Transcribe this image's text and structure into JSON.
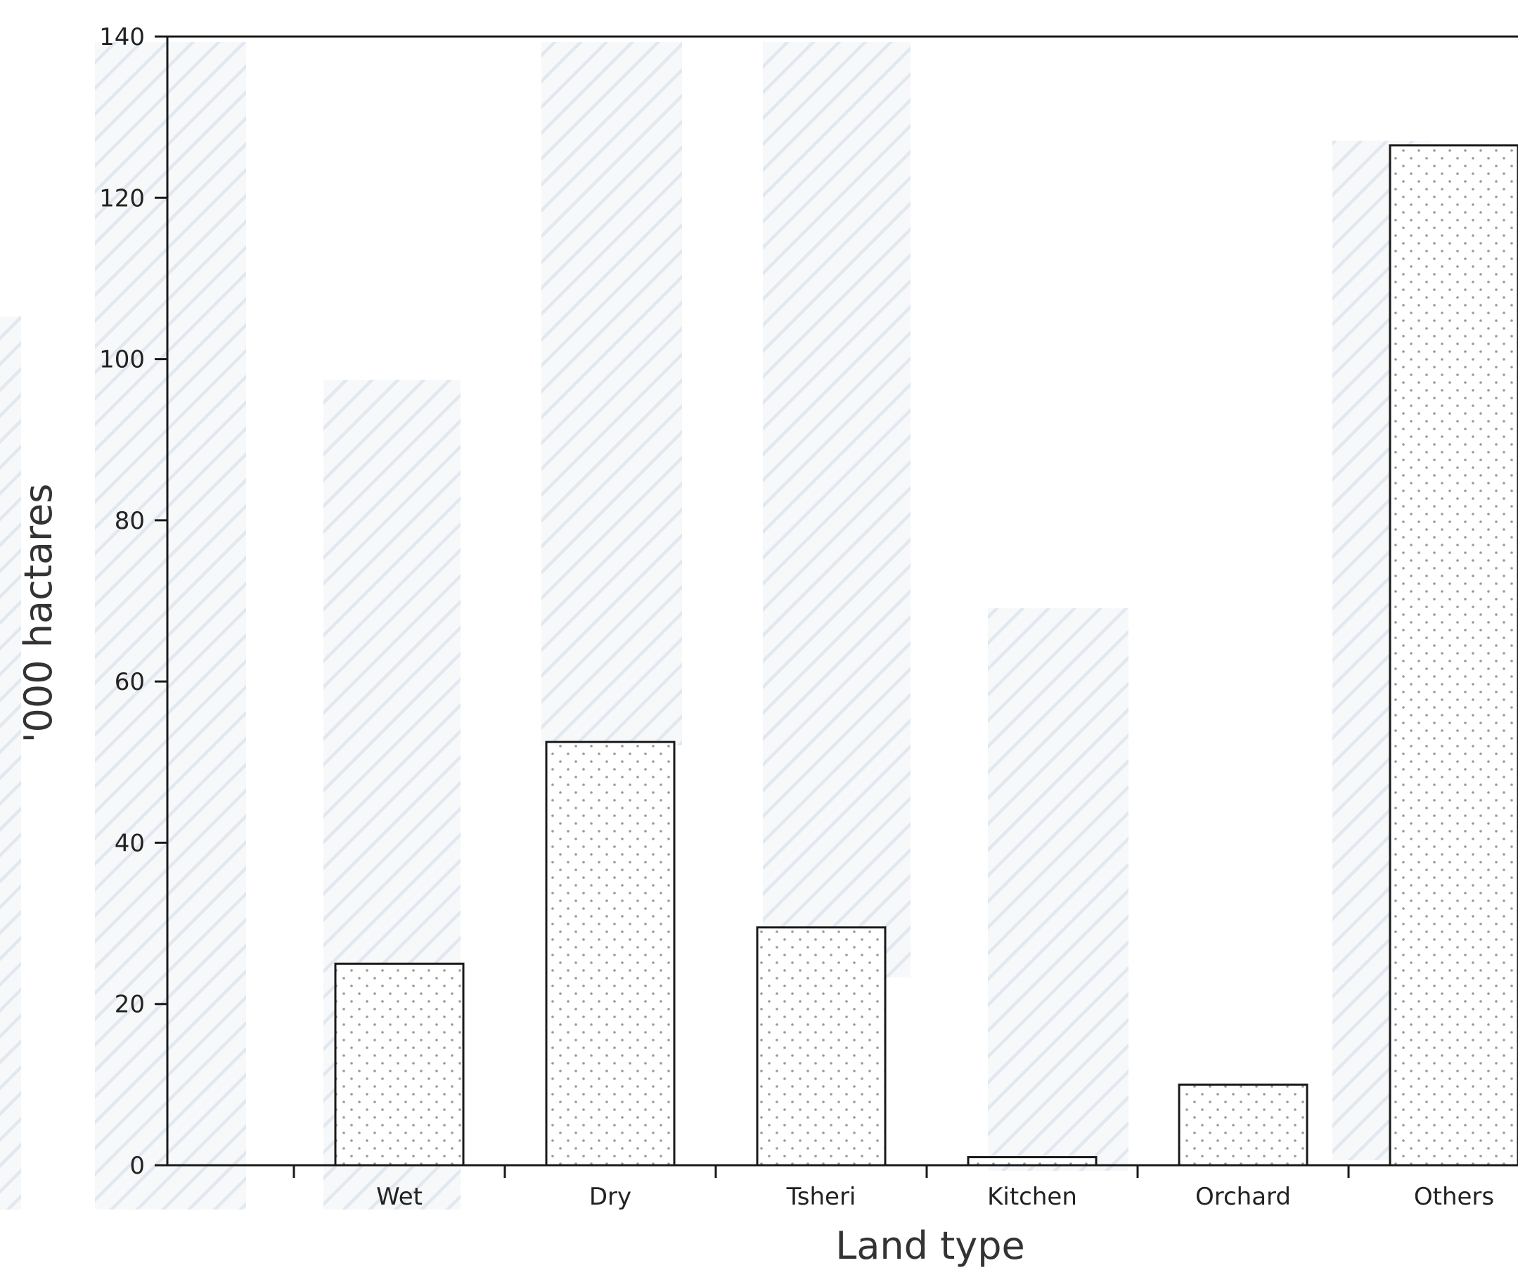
{
  "chart_data": {
    "type": "bar",
    "title": "",
    "xlabel": "Land type",
    "ylabel": "'000 hactares",
    "categories": [
      "Wet",
      "Dry",
      "Tsheri",
      "Kitchen",
      "Orchard",
      "Others"
    ],
    "values": [
      25,
      52.5,
      29.5,
      1,
      10,
      126.5
    ],
    "ylim": [
      0,
      140
    ],
    "yticks": [
      0,
      20,
      40,
      60,
      80,
      100,
      120,
      140
    ],
    "grid": false,
    "legend": "none",
    "bar_fill": "dotted",
    "colors": {
      "bar_outline": "#1a1a1a",
      "bar_dots": "#9a9a9a",
      "background_hatch": "#c9d6e3"
    }
  }
}
